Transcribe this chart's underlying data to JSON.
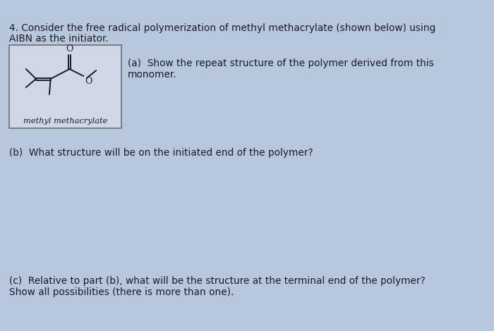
{
  "background_color": "#b8c8dc",
  "title_text_line1": "4. Consider the free radical polymerization of methyl methacrylate (shown below) using",
  "title_text_line2": "AIBN as the initiator.",
  "part_a_text": "(a)  Show the repeat structure of the polymer derived from this\nmonomer.",
  "part_b_text": "(b)  What structure will be on the initiated end of the polymer?",
  "part_c_text": "(c)  Relative to part (b), what will be the structure at the terminal end of the polymer?\nShow all possibilities (there is more than one).",
  "monomer_label": "methyl methacrylate",
  "box_color": "#d0d8e8",
  "box_edge_color": "#666666",
  "text_color": "#1a1a2e",
  "fontsize_main": 9.8,
  "fontsize_label": 8.2,
  "line_color": "#1a1a2e"
}
